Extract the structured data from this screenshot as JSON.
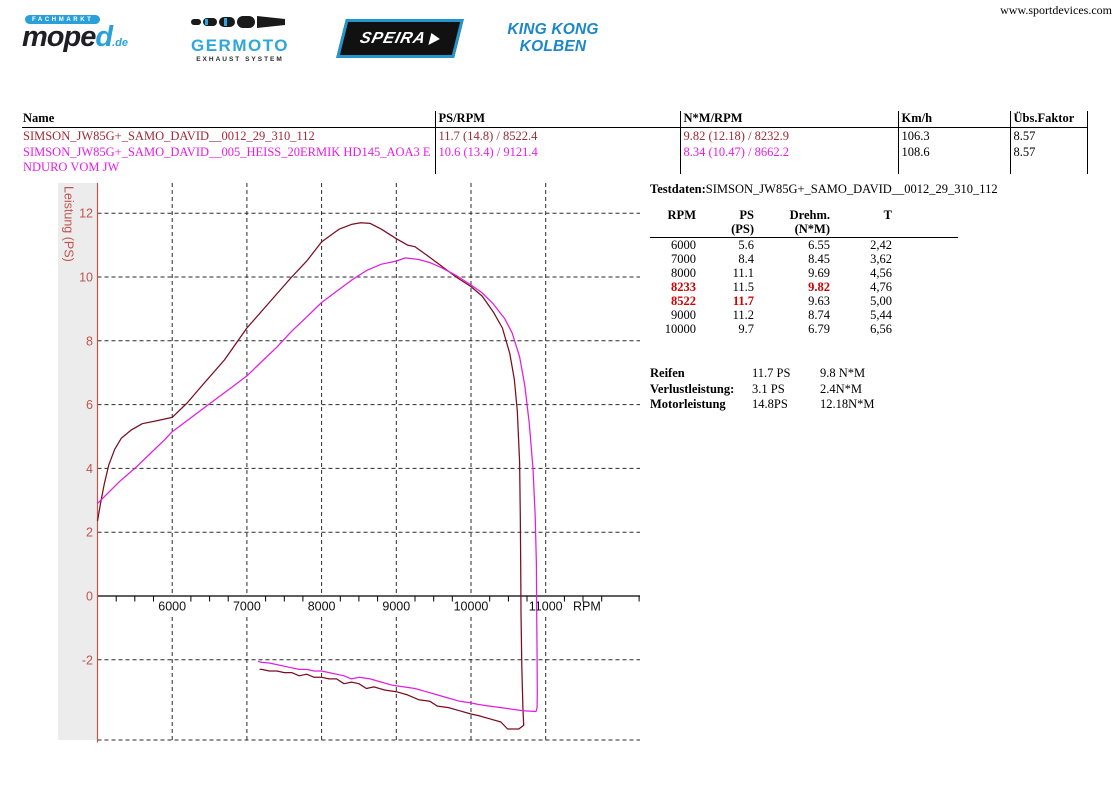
{
  "header": {
    "website": "www.sportdevices.com",
    "logos": {
      "moped": {
        "tagline": "FACHMARKT",
        "name": "mope",
        "name_accent": "d",
        "tld": ".de"
      },
      "germoto": {
        "name": "GERMOTO",
        "tagline": "EXHAUST SYSTEM"
      },
      "speira": {
        "name": "SPEIRA"
      },
      "kingkong": {
        "line1": "KING KONG",
        "line2": "KOLBEN"
      }
    }
  },
  "summary_table": {
    "headers": {
      "name": "Name",
      "ps": "PS/RPM",
      "nm": "N*M/RPM",
      "kmh": "Km/h",
      "uebs": "Übs.Faktor"
    },
    "rows": [
      {
        "name": "SIMSON_JW85G+_SAMO_DAVID__0012_29_310_112",
        "ps": "11.7 (14.8) / 8522.4",
        "nm": "9.82 (12.18) / 8232.9",
        "kmh": "106.3",
        "uebs": "8.57",
        "color": "#a02a35"
      },
      {
        "name": "SIMSON_JW85G+_SAMO_DAVID__005_HEISS_20ERMIK HD145_AOA3 ENDURO VOM JW",
        "ps": "10.6 (13.4) / 9121.4",
        "nm": "8.34 (10.47) / 8662.2",
        "kmh": "108.6",
        "uebs": "8.57",
        "color": "#e81ce8"
      }
    ]
  },
  "testdaten": {
    "label": "Testdaten:",
    "run_name": "SIMSON_JW85G+_SAMO_DAVID__0012_29_310_112",
    "col_headers": [
      {
        "l1": "RPM",
        "l2": ""
      },
      {
        "l1": "PS",
        "l2": "(PS)"
      },
      {
        "l1": "Drehm.",
        "l2": "(N*M)"
      },
      {
        "l1": "T",
        "l2": ""
      }
    ],
    "rows": [
      {
        "rpm": "6000",
        "ps": "5.6",
        "nm": "6.55",
        "t": "2,42",
        "red": []
      },
      {
        "rpm": "7000",
        "ps": "8.4",
        "nm": "8.45",
        "t": "3,62",
        "red": []
      },
      {
        "rpm": "8000",
        "ps": "11.1",
        "nm": "9.69",
        "t": "4,56",
        "red": []
      },
      {
        "rpm": "8233",
        "ps": "11.5",
        "nm": "9.82",
        "t": "4,76",
        "red": [
          "rpm",
          "nm"
        ]
      },
      {
        "rpm": "8522",
        "ps": "11.7",
        "nm": "9.63",
        "t": "5,00",
        "red": [
          "rpm",
          "ps"
        ]
      },
      {
        "rpm": "9000",
        "ps": "11.2",
        "nm": "8.74",
        "t": "5,44",
        "red": []
      },
      {
        "rpm": "10000",
        "ps": "9.7",
        "nm": "6.79",
        "t": "6,56",
        "red": []
      }
    ],
    "summary": [
      {
        "label": "Reifen",
        "v1": "11.7 PS",
        "v2": "9.8 N*M"
      },
      {
        "label": "Verlustleistung:",
        "v1": "3.1 PS",
        "v2": "2.4N*M"
      },
      {
        "label": "Motorleistung",
        "v1": "14.8PS",
        "v2": "12.18N*M"
      }
    ]
  },
  "chart_data": {
    "type": "line",
    "title": "",
    "xlabel": "RPM",
    "ylabel": "Leistung (PS)",
    "xlim": [
      5000,
      12270
    ],
    "ylim": [
      -4.5,
      12.95
    ],
    "x_ticks": [
      6000,
      7000,
      8000,
      9000,
      10000,
      11000
    ],
    "y_ticks": [
      12,
      10,
      8,
      6,
      4,
      2,
      0,
      -2
    ],
    "grid": true,
    "legend": "none",
    "axis_color": "#c0544e",
    "series": [
      {
        "name": "SIMSON_JW85G+_SAMO_DAVID__0012_29_310_112",
        "color": "#7a0d20",
        "points": [
          [
            5000,
            2.35
          ],
          [
            5040,
            2.9
          ],
          [
            5090,
            3.5
          ],
          [
            5150,
            4.1
          ],
          [
            5230,
            4.6
          ],
          [
            5320,
            4.95
          ],
          [
            5450,
            5.2
          ],
          [
            5600,
            5.4
          ],
          [
            5800,
            5.5
          ],
          [
            6000,
            5.6
          ],
          [
            6200,
            6.05
          ],
          [
            6400,
            6.6
          ],
          [
            6700,
            7.4
          ],
          [
            7000,
            8.4
          ],
          [
            7300,
            9.2
          ],
          [
            7600,
            10.0
          ],
          [
            7800,
            10.5
          ],
          [
            8000,
            11.1
          ],
          [
            8233,
            11.5
          ],
          [
            8400,
            11.65
          ],
          [
            8522,
            11.7
          ],
          [
            8650,
            11.68
          ],
          [
            8800,
            11.5
          ],
          [
            9000,
            11.2
          ],
          [
            9150,
            11.0
          ],
          [
            9250,
            10.95
          ],
          [
            9400,
            10.7
          ],
          [
            9600,
            10.35
          ],
          [
            9800,
            10.0
          ],
          [
            10000,
            9.7
          ],
          [
            10150,
            9.4
          ],
          [
            10300,
            8.9
          ],
          [
            10420,
            8.4
          ],
          [
            10520,
            7.6
          ],
          [
            10580,
            6.8
          ],
          [
            10620,
            5.8
          ],
          [
            10650,
            4.2
          ],
          [
            10660,
            2.5
          ],
          [
            10665,
            1.0
          ],
          [
            10670,
            -0.5
          ],
          [
            10680,
            -2.2
          ],
          [
            10695,
            -3.5
          ],
          [
            10705,
            -4.05
          ],
          [
            10640,
            -4.17
          ],
          [
            10490,
            -4.17
          ],
          [
            10400,
            -3.95
          ],
          [
            10250,
            -3.85
          ],
          [
            10100,
            -3.75
          ],
          [
            10000,
            -3.7
          ],
          [
            9850,
            -3.6
          ],
          [
            9700,
            -3.5
          ],
          [
            9550,
            -3.45
          ],
          [
            9450,
            -3.3
          ],
          [
            9300,
            -3.25
          ],
          [
            9150,
            -3.1
          ],
          [
            9000,
            -3.0
          ],
          [
            8850,
            -2.95
          ],
          [
            8700,
            -2.85
          ],
          [
            8600,
            -2.9
          ],
          [
            8500,
            -2.75
          ],
          [
            8400,
            -2.7
          ],
          [
            8300,
            -2.75
          ],
          [
            8200,
            -2.6
          ],
          [
            8100,
            -2.6
          ],
          [
            8000,
            -2.55
          ],
          [
            7900,
            -2.55
          ],
          [
            7800,
            -2.45
          ],
          [
            7700,
            -2.5
          ],
          [
            7600,
            -2.4
          ],
          [
            7500,
            -2.4
          ],
          [
            7400,
            -2.35
          ],
          [
            7300,
            -2.35
          ],
          [
            7200,
            -2.3
          ],
          [
            7170,
            -2.3
          ]
        ]
      },
      {
        "name": "SIMSON_JW85G+_SAMO_DAVID__005_HEISS_20ERMIK HD145_AOA3 ENDURO VOM JW",
        "color": "#e01ee0",
        "points": [
          [
            5000,
            2.9
          ],
          [
            5150,
            3.25
          ],
          [
            5300,
            3.6
          ],
          [
            5500,
            4.0
          ],
          [
            5700,
            4.45
          ],
          [
            5900,
            4.9
          ],
          [
            6000,
            5.15
          ],
          [
            6200,
            5.5
          ],
          [
            6400,
            5.85
          ],
          [
            6600,
            6.2
          ],
          [
            6800,
            6.55
          ],
          [
            7000,
            6.9
          ],
          [
            7200,
            7.35
          ],
          [
            7400,
            7.8
          ],
          [
            7600,
            8.3
          ],
          [
            7800,
            8.75
          ],
          [
            8000,
            9.2
          ],
          [
            8200,
            9.55
          ],
          [
            8400,
            9.9
          ],
          [
            8600,
            10.2
          ],
          [
            8800,
            10.4
          ],
          [
            9000,
            10.5
          ],
          [
            9121,
            10.6
          ],
          [
            9300,
            10.55
          ],
          [
            9450,
            10.45
          ],
          [
            9600,
            10.3
          ],
          [
            9800,
            10.05
          ],
          [
            10000,
            9.75
          ],
          [
            10150,
            9.5
          ],
          [
            10300,
            9.15
          ],
          [
            10450,
            8.7
          ],
          [
            10550,
            8.25
          ],
          [
            10650,
            7.5
          ],
          [
            10720,
            6.6
          ],
          [
            10780,
            5.4
          ],
          [
            10830,
            4.0
          ],
          [
            10860,
            2.5
          ],
          [
            10875,
            1.0
          ],
          [
            10880,
            -0.5
          ],
          [
            10885,
            -2.0
          ],
          [
            10888,
            -3.0
          ],
          [
            10885,
            -3.5
          ],
          [
            10870,
            -3.62
          ],
          [
            10700,
            -3.6
          ],
          [
            10550,
            -3.55
          ],
          [
            10400,
            -3.5
          ],
          [
            10250,
            -3.45
          ],
          [
            10100,
            -3.4
          ],
          [
            10000,
            -3.35
          ],
          [
            9850,
            -3.3
          ],
          [
            9700,
            -3.2
          ],
          [
            9550,
            -3.1
          ],
          [
            9400,
            -3.0
          ],
          [
            9250,
            -2.9
          ],
          [
            9100,
            -2.85
          ],
          [
            8950,
            -2.8
          ],
          [
            8800,
            -2.7
          ],
          [
            8650,
            -2.6
          ],
          [
            8500,
            -2.55
          ],
          [
            8400,
            -2.6
          ],
          [
            8300,
            -2.5
          ],
          [
            8200,
            -2.45
          ],
          [
            8100,
            -2.4
          ],
          [
            8000,
            -2.35
          ],
          [
            7900,
            -2.35
          ],
          [
            7800,
            -2.3
          ],
          [
            7700,
            -2.3
          ],
          [
            7600,
            -2.25
          ],
          [
            7500,
            -2.2
          ],
          [
            7400,
            -2.15
          ],
          [
            7300,
            -2.1
          ],
          [
            7200,
            -2.08
          ],
          [
            7150,
            -2.05
          ]
        ]
      }
    ]
  }
}
